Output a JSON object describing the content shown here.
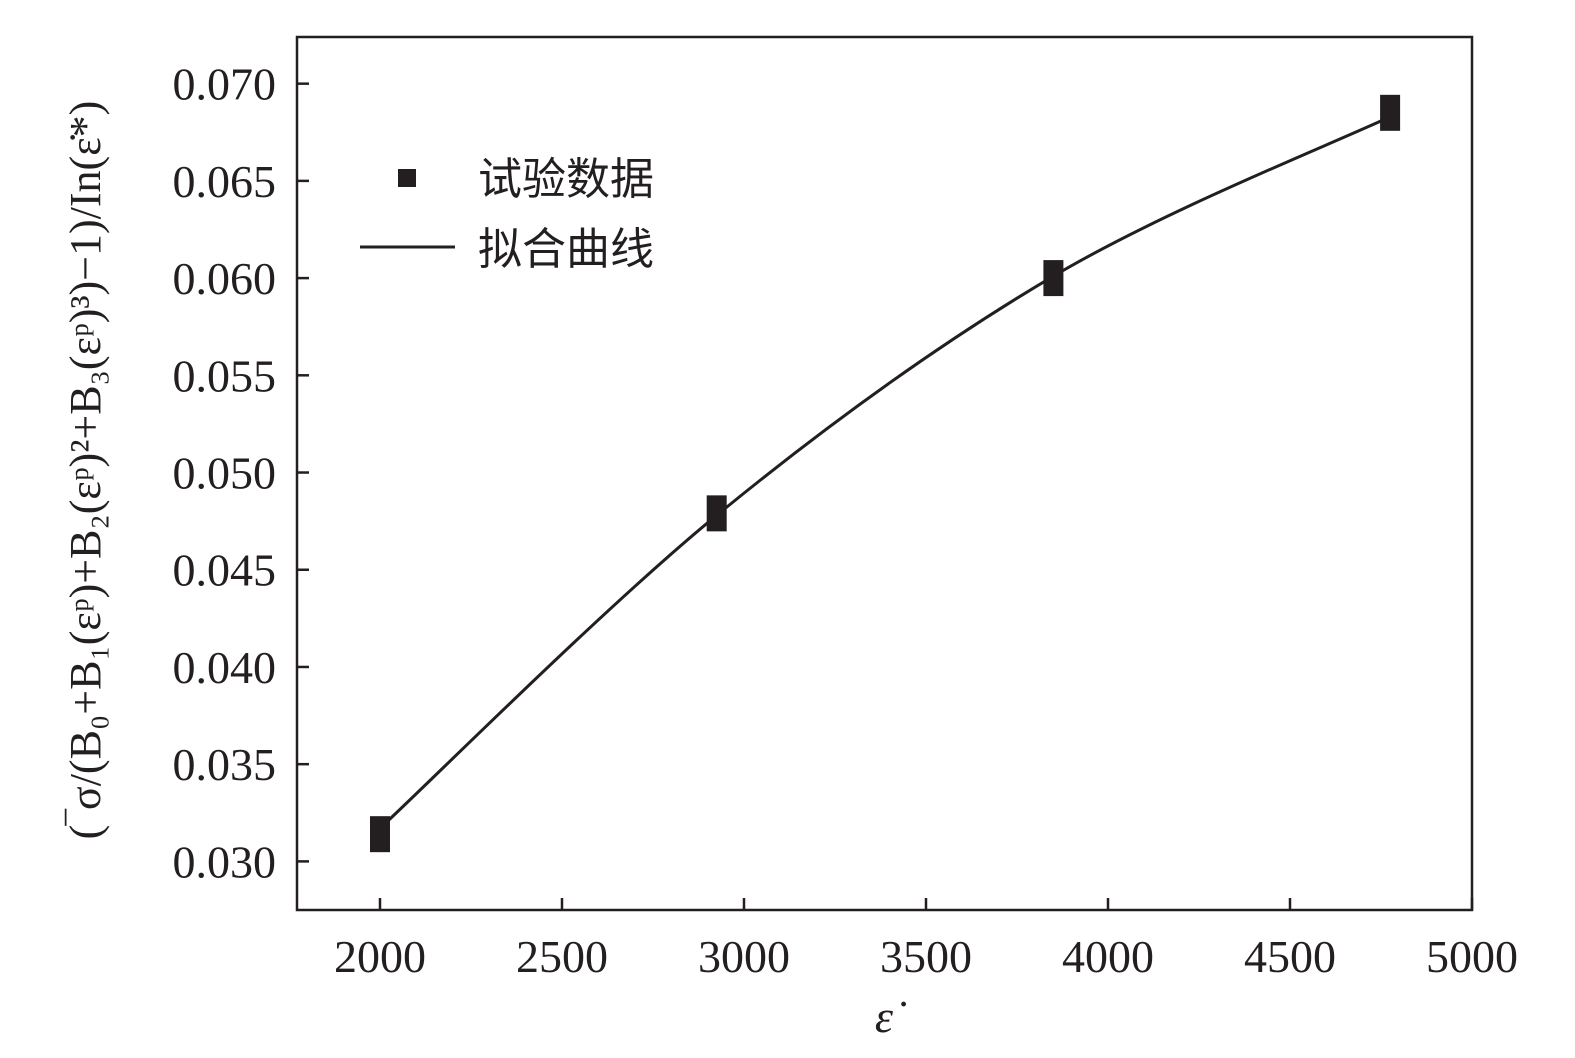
{
  "chart_data": {
    "type": "scatter",
    "title": "",
    "xlabel": "ε̇",
    "ylabel": "(‾σ/(B₀+B₁(εᵖ)+B₂(εᵖ)²+B₃(εᵖ)³)−1)/In(ε̇*)",
    "xlim": [
      1772,
      5000
    ],
    "ylim": [
      0.0275,
      0.0724
    ],
    "xticks": [
      "2000",
      "2500",
      "3000",
      "3500",
      "4000",
      "4500",
      "5000"
    ],
    "yticks": [
      "0.030",
      "0.035",
      "0.040",
      "0.045",
      "0.050",
      "0.055",
      "0.060",
      "0.065",
      "0.070"
    ],
    "grid": false,
    "legend_position": "top-left",
    "series": [
      {
        "name": "试验数据",
        "kind": "markers",
        "x": [
          2000,
          2925,
          3850,
          4775
        ],
        "y": [
          0.0314,
          0.0479,
          0.06,
          0.0685
        ]
      },
      {
        "name": "拟合曲线",
        "kind": "line",
        "x": [
          2000,
          2925,
          3850,
          4775
        ],
        "y": [
          0.0317,
          0.0478,
          0.0601,
          0.0683
        ]
      }
    ],
    "colors": {
      "ink": "#231f20"
    }
  }
}
